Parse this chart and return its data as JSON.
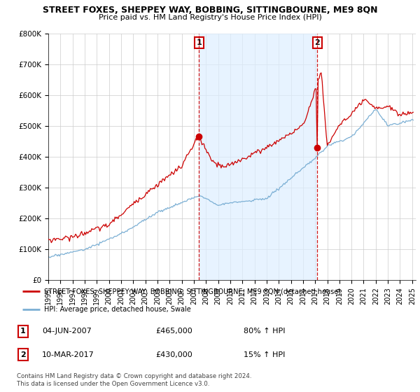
{
  "title": "STREET FOXES, SHEPPEY WAY, BOBBING, SITTINGBOURNE, ME9 8QN",
  "subtitle": "Price paid vs. HM Land Registry's House Price Index (HPI)",
  "ylim": [
    0,
    800000
  ],
  "yticks": [
    0,
    100000,
    200000,
    300000,
    400000,
    500000,
    600000,
    700000,
    800000
  ],
  "ytick_labels": [
    "£0",
    "£100K",
    "£200K",
    "£300K",
    "£400K",
    "£500K",
    "£600K",
    "£700K",
    "£800K"
  ],
  "line1_color": "#cc0000",
  "line2_color": "#7bafd4",
  "shade_color": "#ddeeff",
  "vline_color": "#cc0000",
  "sale1_date_num": 2007.42,
  "sale1_price": 465000,
  "sale2_date_num": 2017.19,
  "sale2_price": 430000,
  "legend_line1": "STREET FOXES, SHEPPEY WAY, BOBBING, SITTINGBOURNE, ME9 8QN (detached house)",
  "legend_line2": "HPI: Average price, detached house, Swale",
  "table_row1": [
    "1",
    "04-JUN-2007",
    "£465,000",
    "80% ↑ HPI"
  ],
  "table_row2": [
    "2",
    "10-MAR-2017",
    "£430,000",
    "15% ↑ HPI"
  ],
  "footer": "Contains HM Land Registry data © Crown copyright and database right 2024.\nThis data is licensed under the Open Government Licence v3.0.",
  "grid_color": "#cccccc"
}
